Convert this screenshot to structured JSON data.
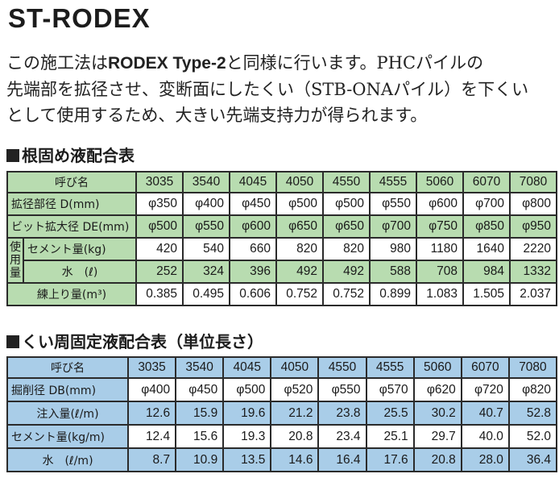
{
  "title": "ST-RODEX",
  "description": {
    "line1_a": "この施工法は",
    "line1_bold": "RODEX Type-2",
    "line1_b": "と同様に行います。PHCパイルの",
    "line2": "先端部を拡径させ、変断面にしたくい（STB-ONAパイル）を下くい",
    "line3": "として使用するため、大きい先端支持力が得られます。"
  },
  "table1": {
    "heading": "根固め液配合表",
    "header_label": "呼び名",
    "columns": [
      "3035",
      "3540",
      "4045",
      "4050",
      "4550",
      "4555",
      "5060",
      "6070",
      "7080"
    ],
    "use_label": "使用量",
    "rows": [
      {
        "label": "拡径部径 D(mm)",
        "values": [
          "φ350",
          "φ400",
          "φ450",
          "φ500",
          "φ500",
          "φ550",
          "φ600",
          "φ700",
          "φ800"
        ]
      },
      {
        "label": "ビット拡大径 DE(mm)",
        "values": [
          "φ500",
          "φ550",
          "φ600",
          "φ650",
          "φ650",
          "φ700",
          "φ750",
          "φ850",
          "φ950"
        ]
      },
      {
        "label": "セメント量(kg)",
        "values": [
          "420",
          "540",
          "660",
          "820",
          "820",
          "980",
          "1180",
          "1640",
          "2220"
        ]
      },
      {
        "label": "水　(ℓ)",
        "values": [
          "252",
          "324",
          "396",
          "492",
          "492",
          "588",
          "708",
          "984",
          "1332"
        ]
      },
      {
        "label": "練上り量(m³)",
        "values": [
          "0.385",
          "0.495",
          "0.606",
          "0.752",
          "0.752",
          "0.899",
          "1.083",
          "1.505",
          "2.037"
        ]
      }
    ]
  },
  "table2": {
    "heading": "くい周固定液配合表（単位長さ）",
    "header_label": "呼び名",
    "columns": [
      "3035",
      "3540",
      "4045",
      "4050",
      "4550",
      "4555",
      "5060",
      "6070",
      "7080"
    ],
    "rows": [
      {
        "label": "掘削径 DB(mm)",
        "values": [
          "φ400",
          "φ450",
          "φ500",
          "φ520",
          "φ550",
          "φ570",
          "φ620",
          "φ720",
          "φ820"
        ]
      },
      {
        "label": "注入量(ℓ/m)",
        "values": [
          "12.6",
          "15.9",
          "19.6",
          "21.2",
          "23.8",
          "25.5",
          "30.2",
          "40.7",
          "52.8"
        ]
      },
      {
        "label": "セメント量(kg/m)",
        "values": [
          "12.4",
          "15.6",
          "19.3",
          "20.8",
          "23.4",
          "25.1",
          "29.7",
          "40.0",
          "52.0"
        ]
      },
      {
        "label": "水　(ℓ/m)",
        "values": [
          "8.7",
          "10.9",
          "13.5",
          "14.6",
          "16.4",
          "17.6",
          "20.8",
          "28.0",
          "36.4"
        ]
      }
    ]
  },
  "colors": {
    "green": "#b8dcb0",
    "blue": "#a9cde8",
    "border": "#2b2b2b"
  }
}
